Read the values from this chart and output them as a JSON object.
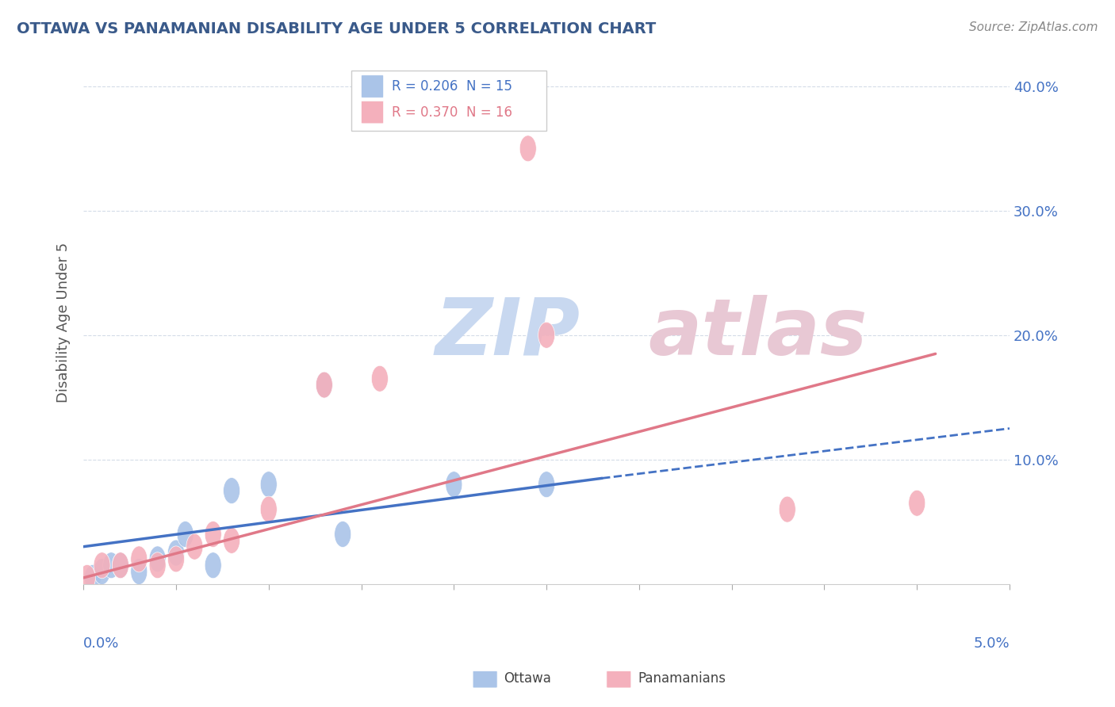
{
  "title": "OTTAWA VS PANAMANIAN DISABILITY AGE UNDER 5 CORRELATION CHART",
  "source": "Source: ZipAtlas.com",
  "ylabel": "Disability Age Under 5",
  "xlim": [
    0.0,
    0.05
  ],
  "ylim": [
    0.0,
    0.42
  ],
  "ytick_vals": [
    0.0,
    0.1,
    0.2,
    0.3,
    0.4
  ],
  "ytick_labels": [
    "",
    "10.0%",
    "20.0%",
    "30.0%",
    "40.0%"
  ],
  "ottawa_r": "0.206",
  "ottawa_n": "15",
  "panamanian_r": "0.370",
  "panamanian_n": "16",
  "ottawa_color": "#aac4e8",
  "panamanian_color": "#f4b0bc",
  "ottawa_line_color": "#4472c4",
  "panamanian_line_color": "#e07888",
  "background_color": "#ffffff",
  "grid_color": "#d4dce8",
  "watermark_zip_color": "#c8d8f0",
  "watermark_atlas_color": "#e8c8d4",
  "ottawa_scatter_x": [
    0.0005,
    0.001,
    0.0015,
    0.002,
    0.003,
    0.004,
    0.005,
    0.0055,
    0.007,
    0.008,
    0.01,
    0.013,
    0.014,
    0.02,
    0.025
  ],
  "ottawa_scatter_y": [
    0.005,
    0.01,
    0.015,
    0.015,
    0.01,
    0.02,
    0.025,
    0.04,
    0.015,
    0.075,
    0.08,
    0.16,
    0.04,
    0.08,
    0.08
  ],
  "panamanian_scatter_x": [
    0.0002,
    0.001,
    0.002,
    0.003,
    0.004,
    0.005,
    0.006,
    0.007,
    0.008,
    0.01,
    0.013,
    0.016,
    0.024,
    0.025,
    0.038,
    0.045
  ],
  "panamanian_scatter_y": [
    0.005,
    0.015,
    0.015,
    0.02,
    0.015,
    0.02,
    0.03,
    0.04,
    0.035,
    0.06,
    0.16,
    0.165,
    0.35,
    0.2,
    0.06,
    0.065
  ],
  "ottawa_line_x0": 0.0,
  "ottawa_line_y0": 0.03,
  "ottawa_line_x1": 0.028,
  "ottawa_line_y1": 0.085,
  "ottawa_line_x2": 0.05,
  "ottawa_line_y2": 0.125,
  "panamanian_line_x0": 0.0,
  "panamanian_line_y0": 0.005,
  "panamanian_line_x1": 0.046,
  "panamanian_line_y1": 0.185
}
